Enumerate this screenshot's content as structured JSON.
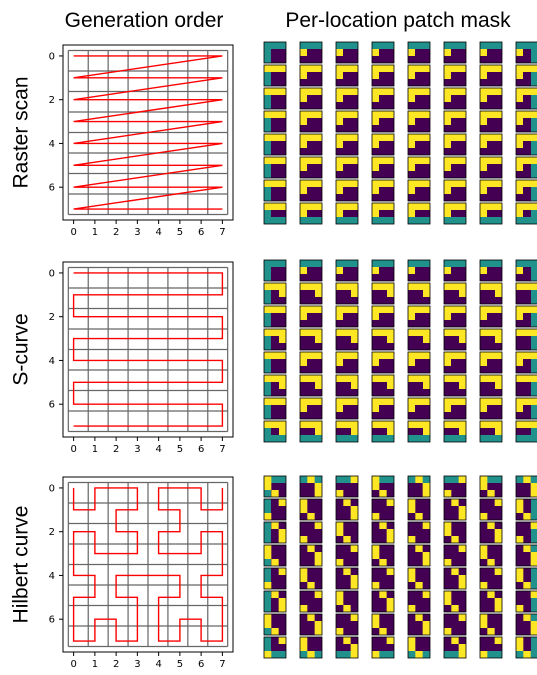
{
  "header": {
    "left_title": "Generation order",
    "right_title": "Per-location patch mask"
  },
  "colors": {
    "path": "#ff0000",
    "grid": "#666666",
    "mask_yellow": "#fde725",
    "mask_teal": "#21918c",
    "mask_purple": "#440154"
  },
  "chart_data": [
    {
      "type": "line",
      "row_label": "Raster scan",
      "xticks": [
        "0",
        "1",
        "2",
        "3",
        "4",
        "5",
        "6",
        "7"
      ],
      "yticks": [
        "0",
        "2",
        "4",
        "6"
      ],
      "xlim": [
        -0.5,
        7.5
      ],
      "ylim": [
        7.5,
        -0.5
      ],
      "grid": true,
      "path": [
        [
          0,
          0
        ],
        [
          7,
          0
        ],
        [
          0,
          1
        ],
        [
          7,
          1
        ],
        [
          0,
          2
        ],
        [
          7,
          2
        ],
        [
          0,
          3
        ],
        [
          7,
          3
        ],
        [
          0,
          4
        ],
        [
          7,
          4
        ],
        [
          0,
          5
        ],
        [
          7,
          5
        ],
        [
          0,
          6
        ],
        [
          7,
          6
        ],
        [
          0,
          7
        ],
        [
          7,
          7
        ]
      ],
      "mask_grid_size": [
        8,
        8
      ],
      "mask_kind": "raster"
    },
    {
      "type": "line",
      "row_label": "S-curve",
      "xticks": [
        "0",
        "1",
        "2",
        "3",
        "4",
        "5",
        "6",
        "7"
      ],
      "yticks": [
        "0",
        "2",
        "4",
        "6"
      ],
      "xlim": [
        -0.5,
        7.5
      ],
      "ylim": [
        7.5,
        -0.5
      ],
      "grid": true,
      "path": [
        [
          0,
          0
        ],
        [
          7,
          0
        ],
        [
          7,
          1
        ],
        [
          0,
          1
        ],
        [
          0,
          2
        ],
        [
          7,
          2
        ],
        [
          7,
          3
        ],
        [
          0,
          3
        ],
        [
          0,
          4
        ],
        [
          7,
          4
        ],
        [
          7,
          5
        ],
        [
          0,
          5
        ],
        [
          0,
          6
        ],
        [
          7,
          6
        ],
        [
          7,
          7
        ],
        [
          0,
          7
        ]
      ],
      "mask_grid_size": [
        8,
        8
      ],
      "mask_kind": "scurve"
    },
    {
      "type": "line",
      "row_label": "Hilbert curve",
      "xticks": [
        "0",
        "1",
        "2",
        "3",
        "4",
        "5",
        "6",
        "7"
      ],
      "yticks": [
        "0",
        "2",
        "4",
        "6"
      ],
      "xlim": [
        -0.5,
        7.5
      ],
      "ylim": [
        7.5,
        -0.5
      ],
      "grid": true,
      "path": [
        [
          0,
          0
        ],
        [
          0,
          1
        ],
        [
          1,
          1
        ],
        [
          1,
          0
        ],
        [
          2,
          0
        ],
        [
          3,
          0
        ],
        [
          3,
          1
        ],
        [
          2,
          1
        ],
        [
          2,
          2
        ],
        [
          3,
          2
        ],
        [
          3,
          3
        ],
        [
          2,
          3
        ],
        [
          1,
          3
        ],
        [
          1,
          2
        ],
        [
          0,
          2
        ],
        [
          0,
          3
        ],
        [
          0,
          4
        ],
        [
          1,
          4
        ],
        [
          1,
          5
        ],
        [
          0,
          5
        ],
        [
          0,
          6
        ],
        [
          0,
          7
        ],
        [
          1,
          7
        ],
        [
          1,
          6
        ],
        [
          2,
          6
        ],
        [
          2,
          7
        ],
        [
          3,
          7
        ],
        [
          3,
          6
        ],
        [
          3,
          5
        ],
        [
          2,
          5
        ],
        [
          2,
          4
        ],
        [
          3,
          4
        ],
        [
          4,
          4
        ],
        [
          5,
          4
        ],
        [
          5,
          5
        ],
        [
          4,
          5
        ],
        [
          4,
          6
        ],
        [
          4,
          7
        ],
        [
          5,
          7
        ],
        [
          5,
          6
        ],
        [
          6,
          6
        ],
        [
          6,
          7
        ],
        [
          7,
          7
        ],
        [
          7,
          6
        ],
        [
          7,
          5
        ],
        [
          6,
          5
        ],
        [
          6,
          4
        ],
        [
          7,
          4
        ],
        [
          7,
          3
        ],
        [
          7,
          2
        ],
        [
          6,
          2
        ],
        [
          6,
          3
        ],
        [
          5,
          3
        ],
        [
          4,
          3
        ],
        [
          4,
          2
        ],
        [
          5,
          2
        ],
        [
          5,
          1
        ],
        [
          4,
          1
        ],
        [
          4,
          0
        ],
        [
          5,
          0
        ],
        [
          6,
          0
        ],
        [
          6,
          1
        ],
        [
          7,
          1
        ],
        [
          7,
          0
        ]
      ],
      "mask_grid_size": [
        8,
        8
      ],
      "mask_kind": "hilbert"
    }
  ]
}
